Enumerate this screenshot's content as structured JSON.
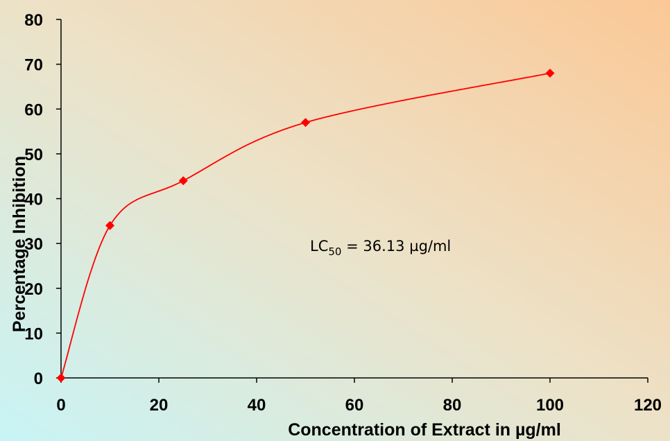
{
  "chart_data": {
    "type": "line",
    "title": "",
    "xlabel": "Concentration of Extract in µg/ml",
    "ylabel": "Percentage Inhibition",
    "xlim": [
      0,
      120
    ],
    "ylim": [
      0,
      80
    ],
    "xticks": [
      0,
      20,
      40,
      60,
      80,
      100,
      120
    ],
    "yticks": [
      0,
      10,
      20,
      30,
      40,
      50,
      60,
      70,
      80
    ],
    "x": [
      0,
      10,
      25,
      50,
      100
    ],
    "series": [
      {
        "name": "",
        "values": [
          0,
          34,
          44,
          57,
          68
        ],
        "color": "#ff0000",
        "marker": "diamond",
        "smooth": true
      }
    ],
    "annotation": {
      "prefix": "LC",
      "subscript": "50",
      "suffix": " = 36.13 µg/ml"
    },
    "grid": false,
    "background_gradient": {
      "bottom_left": "#c8f4f6",
      "top_right": "#fbc896"
    }
  }
}
